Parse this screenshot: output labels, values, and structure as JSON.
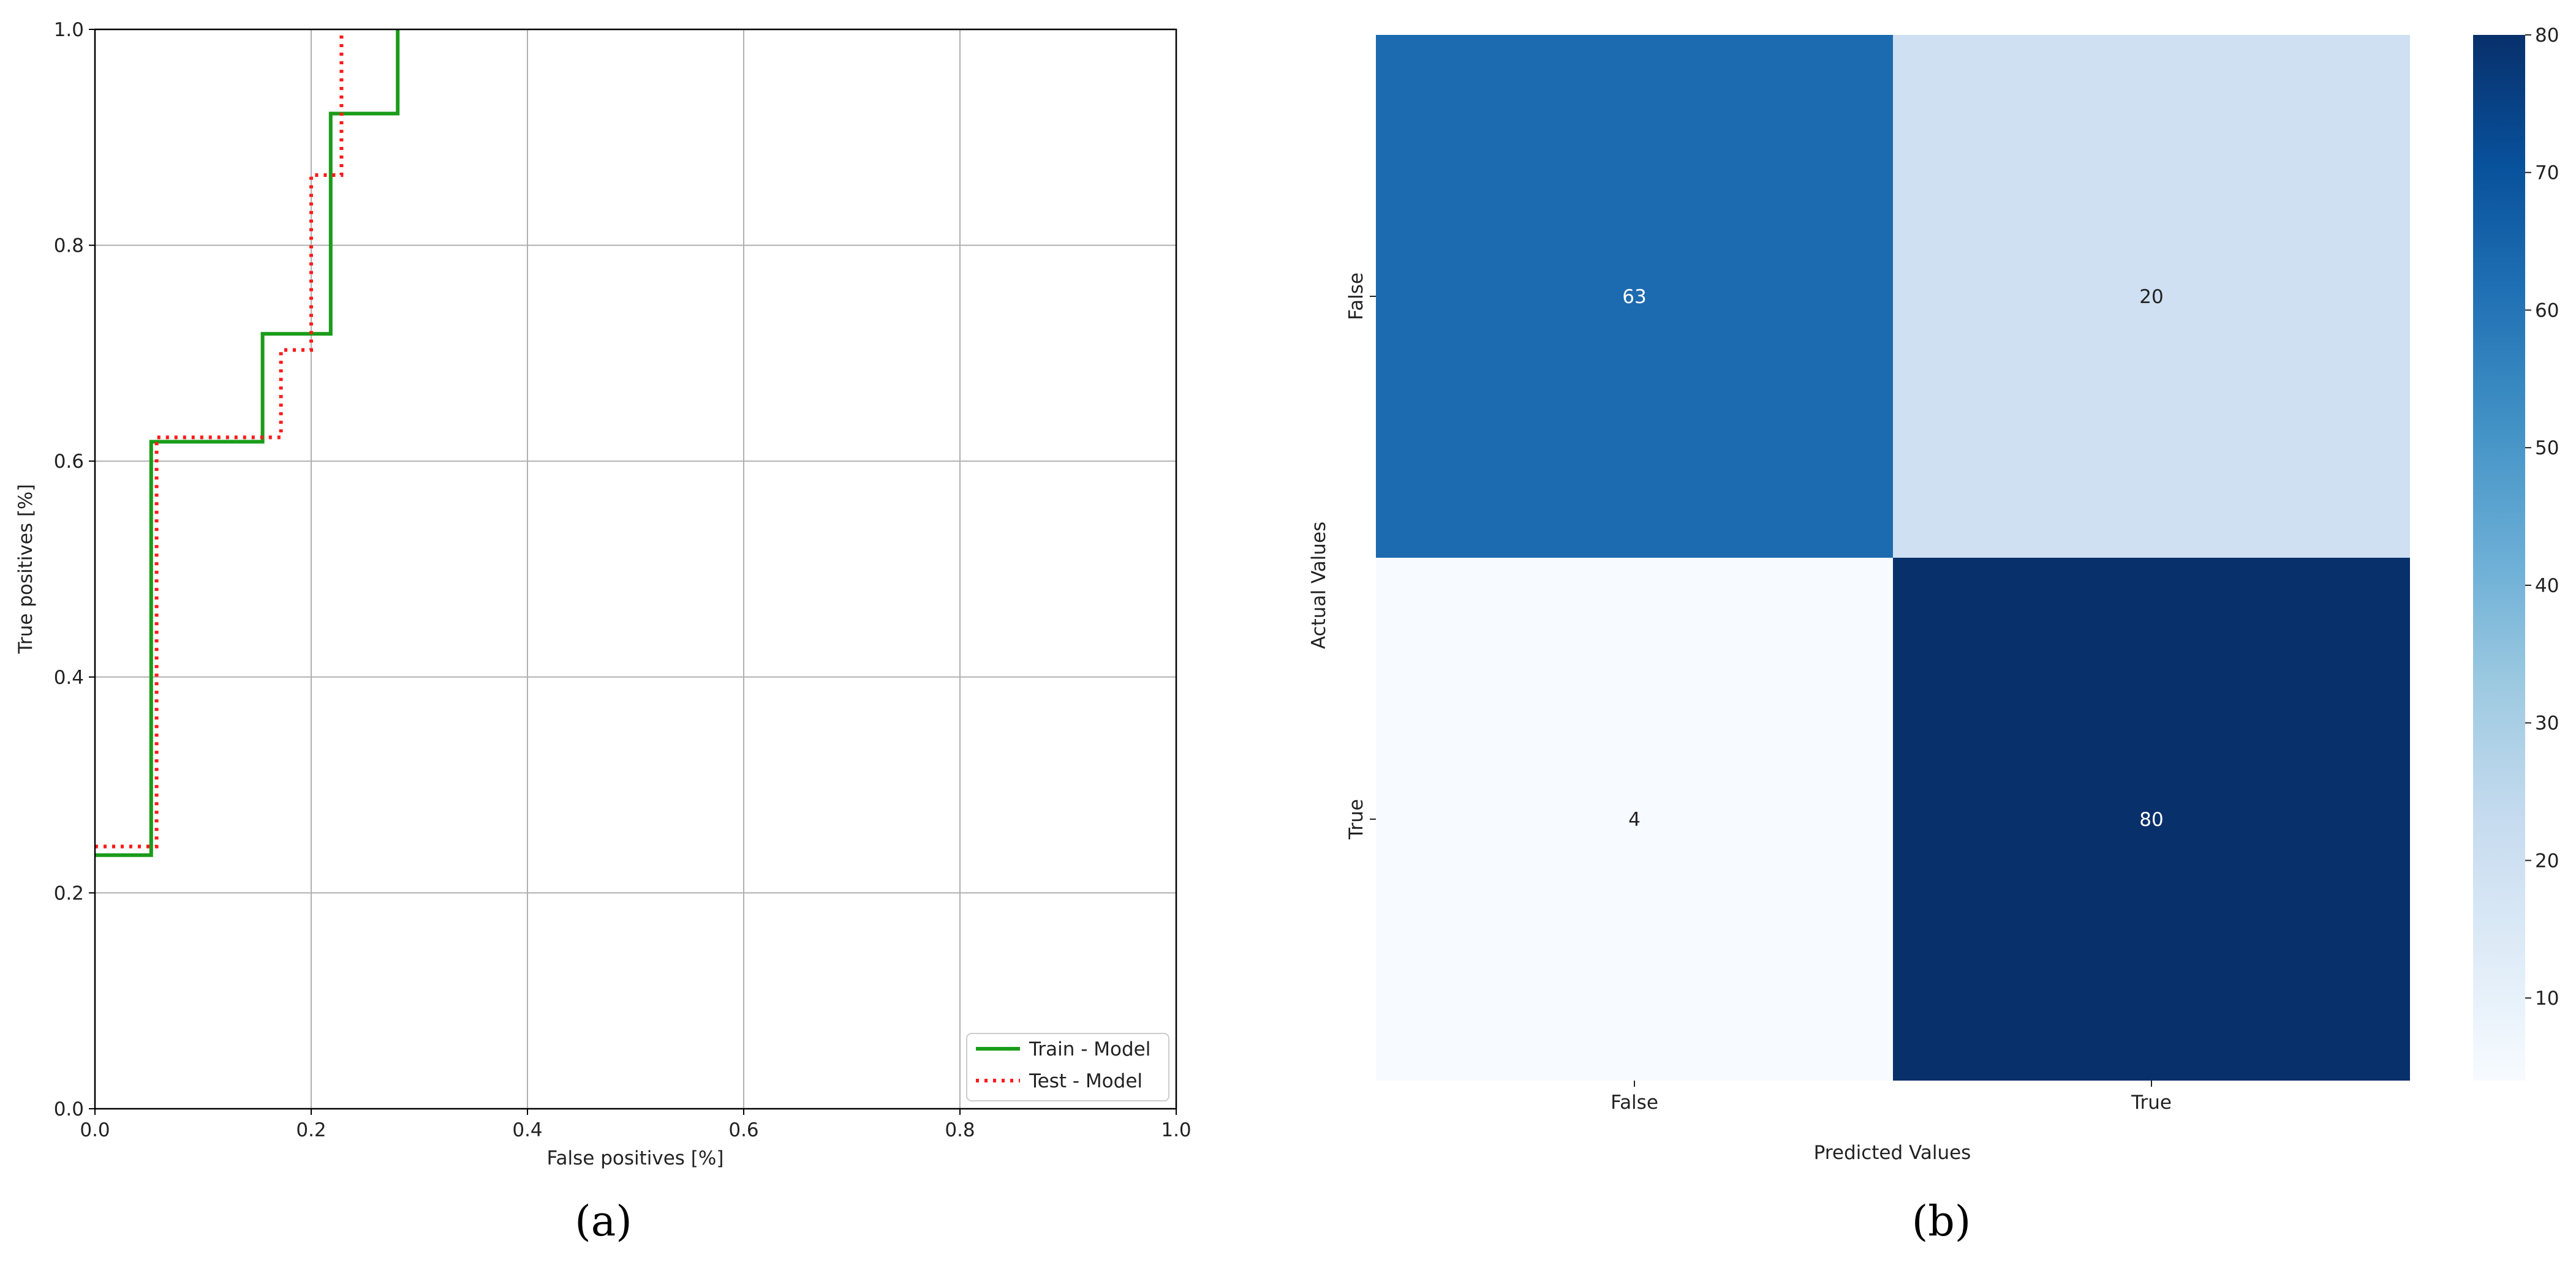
{
  "chart_data": [
    {
      "type": "line",
      "panel_label": "(a)",
      "xlabel": "False positives [%]",
      "ylabel": "True positives [%]",
      "xlim": [
        0,
        1
      ],
      "ylim": [
        0,
        1
      ],
      "xticks": [
        "0.0",
        "0.2",
        "0.4",
        "0.6",
        "0.8",
        "1.0"
      ],
      "yticks": [
        "0.0",
        "0.2",
        "0.4",
        "0.6",
        "0.8",
        "1.0"
      ],
      "grid": true,
      "legend": "bottom-right",
      "series": [
        {
          "name": "Train - Model",
          "color": "#1a9c1a",
          "style": "solid",
          "points": [
            [
              0,
              0.235
            ],
            [
              0.052,
              0.235
            ],
            [
              0.052,
              0.618
            ],
            [
              0.155,
              0.618
            ],
            [
              0.155,
              0.718
            ],
            [
              0.218,
              0.718
            ],
            [
              0.218,
              0.922
            ],
            [
              0.28,
              0.922
            ],
            [
              0.28,
              1.0
            ]
          ]
        },
        {
          "name": "Test - Model",
          "color": "#ff1a1a",
          "style": "dotted",
          "points": [
            [
              0,
              0.243
            ],
            [
              0.057,
              0.243
            ],
            [
              0.057,
              0.622
            ],
            [
              0.172,
              0.622
            ],
            [
              0.172,
              0.703
            ],
            [
              0.2,
              0.703
            ],
            [
              0.2,
              0.865
            ],
            [
              0.228,
              0.865
            ],
            [
              0.228,
              1.0
            ]
          ]
        }
      ]
    },
    {
      "type": "heatmap",
      "panel_label": "(b)",
      "xlabel": "Predicted Values",
      "ylabel": "Actual Values",
      "x_categories": [
        "False",
        "True"
      ],
      "y_categories": [
        "False",
        "True"
      ],
      "values": [
        [
          63,
          20
        ],
        [
          4,
          80
        ]
      ],
      "colorbar": {
        "min": 4,
        "max": 80,
        "ticks": [
          10,
          20,
          30,
          40,
          50,
          60,
          70,
          80
        ],
        "colormap": [
          "#f7fbff",
          "#deebf7",
          "#c6dbef",
          "#9ecae1",
          "#6baed6",
          "#4292c6",
          "#2171b5",
          "#08519c",
          "#08306b"
        ]
      }
    }
  ]
}
